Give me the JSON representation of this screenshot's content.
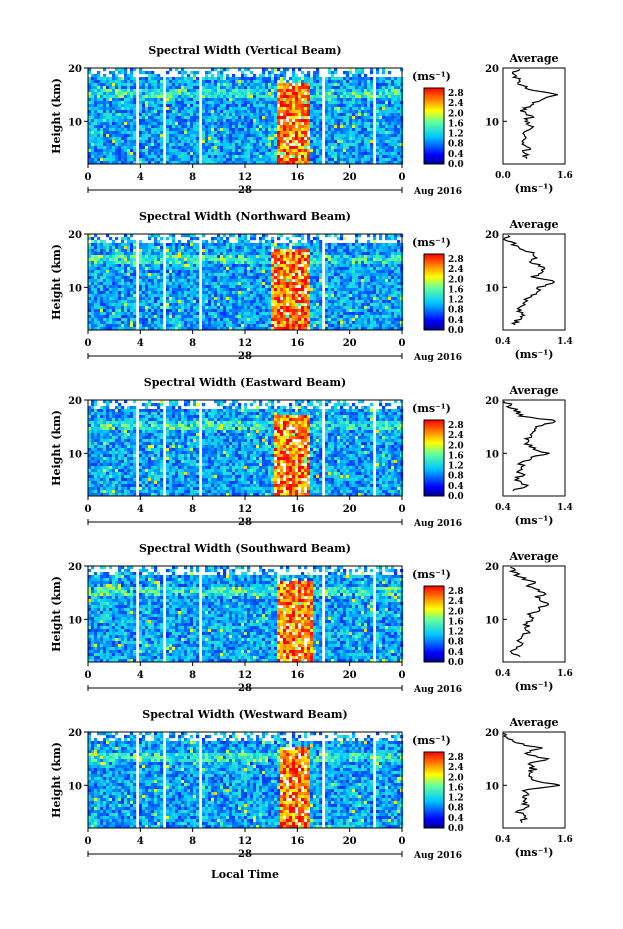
{
  "figure": {
    "xlabel": "Local Time",
    "colorbar": {
      "unit_label": "(ms⁻¹)",
      "ticks": [
        "0.0",
        "0.4",
        "0.8",
        "1.2",
        "1.6",
        "2.0",
        "2.4",
        "2.8"
      ]
    },
    "average_title": "Average",
    "average_unit": "(ms⁻¹)"
  },
  "chart_data": [
    {
      "type": "heatmap",
      "title": "Spectral Width (Vertical Beam)",
      "ylabel": "Height (km)",
      "ylim": [
        2,
        20
      ],
      "yticks": [
        "20",
        "10"
      ],
      "xlim": [
        0,
        24
      ],
      "xticks": [
        "0",
        "4",
        "8",
        "12",
        "16",
        "20",
        "0"
      ],
      "date_label": "28",
      "month_label": "Aug 2016",
      "color_range": [
        0.0,
        3.0
      ],
      "gaps_hours": [
        [
          3.6,
          3.8
        ],
        [
          5.7,
          5.85
        ],
        [
          8.3,
          8.7
        ],
        [
          17.8,
          17.95
        ],
        [
          21.7,
          21.85
        ]
      ],
      "high_width_region": {
        "start_hour": 14.3,
        "end_hour": 16.9,
        "peak_value": 2.8
      },
      "average": {
        "xlim": [
          0.0,
          1.6
        ],
        "xticks": [
          "0.0",
          "1.6"
        ],
        "yticks": [
          "20",
          "10"
        ],
        "height_km": [
          3,
          4,
          5,
          6,
          7,
          8,
          9,
          10,
          11,
          12,
          13,
          14,
          15,
          16,
          17,
          18,
          19,
          20
        ],
        "values": [
          0.6,
          0.55,
          0.65,
          0.5,
          0.6,
          0.5,
          0.7,
          0.55,
          0.75,
          0.5,
          0.7,
          0.9,
          1.4,
          0.6,
          0.45,
          0.35,
          0.3,
          0.4
        ]
      }
    },
    {
      "type": "heatmap",
      "title": "Spectral Width (Northward Beam)",
      "ylabel": "Height (km)",
      "ylim": [
        2,
        20
      ],
      "yticks": [
        "20",
        "10"
      ],
      "xlim": [
        0,
        24
      ],
      "xticks": [
        "0",
        "4",
        "8",
        "12",
        "16",
        "20",
        "0"
      ],
      "date_label": "28",
      "month_label": "Aug 2016",
      "color_range": [
        0.0,
        3.0
      ],
      "gaps_hours": [
        [
          3.6,
          3.8
        ],
        [
          5.7,
          5.85
        ],
        [
          8.3,
          8.7
        ],
        [
          17.8,
          17.95
        ]
      ],
      "high_width_region": {
        "start_hour": 13.9,
        "end_hour": 16.8,
        "peak_value": 2.8
      },
      "average": {
        "xlim": [
          0.4,
          1.4
        ],
        "xticks": [
          "0.4",
          "1.4"
        ],
        "yticks": [
          "20",
          "10"
        ],
        "height_km": [
          3,
          4,
          5,
          6,
          7,
          8,
          9,
          10,
          11,
          12,
          13,
          14,
          15,
          16,
          17,
          18,
          19,
          20
        ],
        "values": [
          0.6,
          0.65,
          0.7,
          0.65,
          0.75,
          0.8,
          0.95,
          1.0,
          1.25,
          0.9,
          1.1,
          1.0,
          0.85,
          0.95,
          0.75,
          0.6,
          0.45,
          0.5
        ]
      }
    },
    {
      "type": "heatmap",
      "title": "Spectral Width (Eastward Beam)",
      "ylabel": "Height (km)",
      "ylim": [
        2,
        20
      ],
      "yticks": [
        "20",
        "10"
      ],
      "xlim": [
        0,
        24
      ],
      "xticks": [
        "0",
        "4",
        "8",
        "12",
        "16",
        "20",
        "0"
      ],
      "date_label": "28",
      "month_label": "Aug 2016",
      "color_range": [
        0.0,
        3.0
      ],
      "gaps_hours": [
        [
          3.6,
          3.8
        ],
        [
          5.7,
          5.85
        ],
        [
          8.3,
          8.7
        ],
        [
          17.8,
          17.95
        ],
        [
          21.7,
          21.85
        ]
      ],
      "high_width_region": {
        "start_hour": 14.1,
        "end_hour": 16.9,
        "peak_value": 2.8
      },
      "average": {
        "xlim": [
          0.4,
          1.4
        ],
        "xticks": [
          "0.4",
          "1.4"
        ],
        "yticks": [
          "20",
          "10"
        ],
        "height_km": [
          3,
          4,
          5,
          6,
          7,
          8,
          9,
          10,
          11,
          12,
          13,
          14,
          15,
          16,
          17,
          18,
          19,
          20
        ],
        "values": [
          0.6,
          0.8,
          0.6,
          0.7,
          0.65,
          0.7,
          0.85,
          1.1,
          0.9,
          0.75,
          0.8,
          0.9,
          0.95,
          1.3,
          0.7,
          0.6,
          0.5,
          0.45
        ]
      }
    },
    {
      "type": "heatmap",
      "title": "Spectral Width (Southward Beam)",
      "ylabel": "Height (km)",
      "ylim": [
        2,
        20
      ],
      "yticks": [
        "20",
        "10"
      ],
      "xlim": [
        0,
        24
      ],
      "xticks": [
        "0",
        "4",
        "8",
        "12",
        "16",
        "20",
        "0"
      ],
      "date_label": "28",
      "month_label": "Aug 2016",
      "color_range": [
        0.0,
        3.0
      ],
      "gaps_hours": [
        [
          3.6,
          3.8
        ],
        [
          5.7,
          5.85
        ],
        [
          8.3,
          8.7
        ],
        [
          17.8,
          17.95
        ],
        [
          21.7,
          21.85
        ]
      ],
      "high_width_region": {
        "start_hour": 14.4,
        "end_hour": 17.0,
        "peak_value": 2.8
      },
      "average": {
        "xlim": [
          0.4,
          1.6
        ],
        "xticks": [
          "0.4",
          "1.6"
        ],
        "yticks": [
          "20",
          "10"
        ],
        "height_km": [
          3,
          4,
          5,
          6,
          7,
          8,
          9,
          10,
          11,
          12,
          13,
          14,
          15,
          16,
          17,
          18,
          19,
          20
        ],
        "values": [
          0.7,
          0.6,
          0.75,
          0.7,
          0.8,
          0.9,
          0.85,
          1.0,
          0.95,
          1.1,
          1.25,
          1.05,
          1.2,
          0.9,
          1.0,
          0.7,
          0.6,
          0.55
        ]
      }
    },
    {
      "type": "heatmap",
      "title": "Spectral Width (Westward Beam)",
      "ylabel": "Height (km)",
      "ylim": [
        2,
        20
      ],
      "yticks": [
        "20",
        "10"
      ],
      "xlim": [
        0,
        24
      ],
      "xticks": [
        "0",
        "4",
        "8",
        "12",
        "16",
        "20",
        "0"
      ],
      "date_label": "28",
      "month_label": "Aug 2016",
      "color_range": [
        0.0,
        3.0
      ],
      "gaps_hours": [
        [
          3.6,
          3.8
        ],
        [
          5.7,
          5.85
        ],
        [
          8.3,
          8.7
        ],
        [
          17.8,
          17.95
        ],
        [
          21.7,
          21.85
        ]
      ],
      "high_width_region": {
        "start_hour": 14.5,
        "end_hour": 16.9,
        "peak_value": 2.8
      },
      "average": {
        "xlim": [
          0.4,
          1.6
        ],
        "xticks": [
          "0.4",
          "1.6"
        ],
        "yticks": [
          "20",
          "10"
        ],
        "height_km": [
          3,
          4,
          5,
          6,
          7,
          8,
          9,
          10,
          11,
          12,
          13,
          14,
          15,
          16,
          17,
          18,
          19,
          20
        ],
        "values": [
          0.75,
          0.8,
          0.7,
          0.9,
          0.75,
          0.85,
          0.8,
          1.45,
          0.95,
          0.85,
          1.0,
          0.9,
          1.25,
          0.8,
          1.15,
          0.6,
          0.5,
          0.45
        ]
      }
    }
  ]
}
